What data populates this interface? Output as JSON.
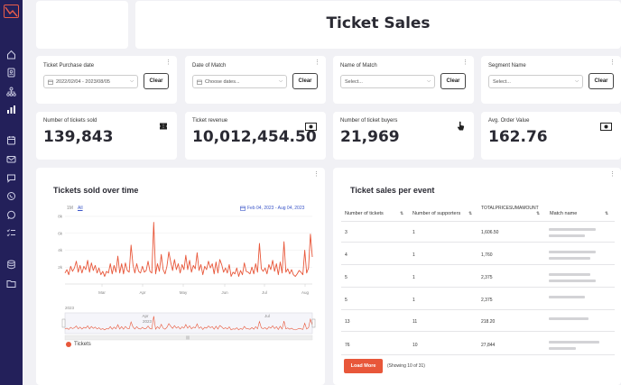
{
  "page": {
    "title": "Ticket Sales"
  },
  "sidebar": {
    "items": [
      {
        "icon": "home-icon"
      },
      {
        "icon": "contacts-icon"
      },
      {
        "icon": "hierarchy-icon"
      },
      {
        "icon": "bar-chart-icon"
      },
      {
        "icon": "calendar-icon"
      },
      {
        "icon": "mail-icon"
      },
      {
        "icon": "chat-icon"
      },
      {
        "icon": "viber-icon"
      },
      {
        "icon": "whatsapp-icon"
      },
      {
        "icon": "checklist-icon"
      },
      {
        "icon": "database-icon"
      },
      {
        "icon": "folder-icon"
      }
    ]
  },
  "filters": [
    {
      "label": "Ticket Purchase date",
      "value": "2022/02/04 - 2023/08/05",
      "clear": "Clear"
    },
    {
      "label": "Date of Match",
      "placeholder": "Choose dates...",
      "clear": "Clear"
    },
    {
      "label": "Name of Match",
      "placeholder": "Select...",
      "clear": "Clear"
    },
    {
      "label": "Segment Name",
      "placeholder": "Select...",
      "clear": "Clear"
    }
  ],
  "kpis": [
    {
      "label": "Number of tickets sold",
      "value": "139,843",
      "icon": "ticket-icon"
    },
    {
      "label": "Ticket revenue",
      "value": "10,012,454.50",
      "icon": "banknote-icon"
    },
    {
      "label": "Number of ticket buyers",
      "value": "21,969",
      "icon": "hand-pointer-icon"
    },
    {
      "label": "Avg. Order Value",
      "value": "162.76",
      "icon": "banknote-icon"
    }
  ],
  "tickets_chart": {
    "title": "Tickets sold over time",
    "ranges": [
      "1M",
      "All"
    ],
    "active_range": "All",
    "date_range": "Feb 04, 2023 - Aug 04, 2023",
    "navigator_year": "2023",
    "legend": "Tickets",
    "color": "#e8573a"
  },
  "chart_data": {
    "type": "line",
    "title": "Tickets sold over time",
    "xlabel": "",
    "ylabel": "",
    "x_ticks": [
      "Mar",
      "Apr",
      "May",
      "Jun",
      "Jul",
      "Aug"
    ],
    "y_ticks": [
      "2k",
      "4k",
      "6k",
      "8k"
    ],
    "ylim": [
      0,
      8000
    ],
    "navigator_ticks": [
      "Apr",
      "Jul"
    ],
    "series": [
      {
        "name": "Tickets",
        "values": [
          1300,
          1700,
          1100,
          2100,
          1500,
          1900,
          2700,
          1400,
          2200,
          1300,
          2100,
          1700,
          2800,
          1400,
          2500,
          1600,
          2200,
          1300,
          1900,
          1100,
          1500,
          900,
          1500,
          1300,
          2400,
          1200,
          2200,
          1400,
          3300,
          1300,
          2400,
          1200,
          2500,
          1600,
          1400,
          4600,
          2300,
          1300,
          2400,
          1500,
          1300,
          2100,
          1400,
          1600,
          2700,
          1500,
          1300,
          7300,
          1200,
          2400,
          1500,
          3500,
          1700,
          1200,
          2100,
          3800,
          2600,
          1600,
          2900,
          1700,
          2400,
          1300,
          2300,
          1700,
          3400,
          1700,
          2800,
          1400,
          2200,
          1800,
          3700,
          1600,
          2300,
          1100,
          2100,
          1700,
          2700,
          1900,
          2400,
          1200,
          2600,
          1300,
          2900,
          2300,
          1400,
          1900,
          1300,
          2300,
          900,
          1400,
          1200,
          1900,
          900,
          1600,
          1100,
          2500,
          1500,
          1400,
          1200,
          2000,
          1200,
          2400,
          1400,
          4800,
          1800,
          1500,
          1900,
          1200,
          2300,
          1700,
          2800,
          1500,
          2400,
          1100,
          2600,
          1300,
          5000,
          1400,
          1800,
          1200,
          1700,
          1100,
          900,
          1200,
          1600,
          1400,
          1100,
          4000,
          1300,
          1900,
          5900,
          3200
        ]
      }
    ]
  },
  "sales_table": {
    "title": "Ticket sales per event",
    "columns": [
      "Number of tickets",
      "Number of supporters",
      "TOTALPRICESUMAMOUNT",
      "Match name"
    ],
    "rows": [
      [
        "3",
        "1",
        "1,606.50"
      ],
      [
        "4",
        "1",
        "1,760"
      ],
      [
        "5",
        "1",
        "2,375"
      ],
      [
        "5",
        "1",
        "2,375"
      ],
      [
        "13",
        "11",
        "218.20"
      ],
      [
        "76",
        "10",
        "27,844"
      ]
    ],
    "load_more": "Load More",
    "showing": "(Showing 10 of 31)"
  }
}
